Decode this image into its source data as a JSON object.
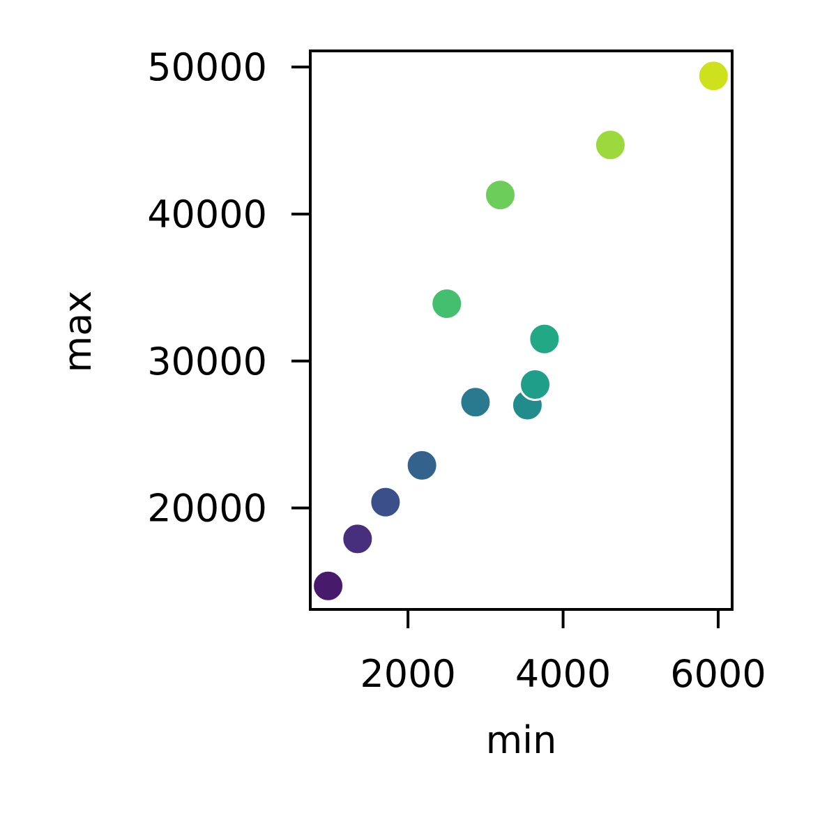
{
  "chart_data": {
    "type": "scatter",
    "title": "",
    "xlabel": "min",
    "ylabel": "max",
    "xlim": [
      740,
      6180
    ],
    "ylim": [
      13100,
      51100
    ],
    "xticks": [
      2000,
      4000,
      6000
    ],
    "yticks": [
      20000,
      30000,
      40000,
      50000
    ],
    "grid": false,
    "legend": "none",
    "points": [
      {
        "x": 970,
        "y": 14700,
        "color": "#481a6c"
      },
      {
        "x": 1350,
        "y": 17900,
        "color": "#472f7d"
      },
      {
        "x": 1710,
        "y": 20400,
        "color": "#3b4f8a"
      },
      {
        "x": 2180,
        "y": 22900,
        "color": "#33638d"
      },
      {
        "x": 2870,
        "y": 27200,
        "color": "#297a8e"
      },
      {
        "x": 3540,
        "y": 27000,
        "color": "#228c8d"
      },
      {
        "x": 3640,
        "y": 28400,
        "color": "#1f9e89"
      },
      {
        "x": 3760,
        "y": 31500,
        "color": "#22a884"
      },
      {
        "x": 2500,
        "y": 33900,
        "color": "#44bf70"
      },
      {
        "x": 3190,
        "y": 41300,
        "color": "#6ccd5a"
      },
      {
        "x": 4610,
        "y": 44700,
        "color": "#9bd93c"
      },
      {
        "x": 5940,
        "y": 49400,
        "color": "#cde11d"
      }
    ]
  }
}
